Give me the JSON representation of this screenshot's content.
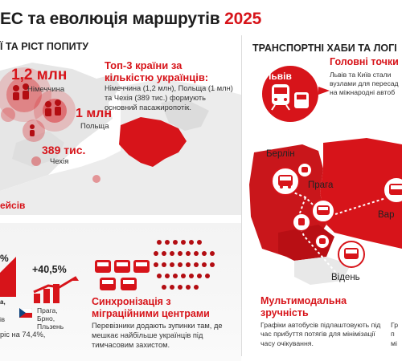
{
  "header": {
    "title_prefix": "ЕС та еволюція маршрутів",
    "title_year": "2025"
  },
  "left": {
    "subtitle": "Ї ТА РІСТ ПОПИТУ",
    "germany_value": "1,2 млн",
    "germany_label": "Німеччина",
    "poland_value": "1 млн",
    "poland_label": "Польща",
    "czech_value": "389 тис.",
    "czech_label": "Чехія",
    "top3_heading": "Топ-3 країни за кількістю українців:",
    "top3_body": "Німеччина (1,2 млн), Польща (1 млн) та Чехія (389 тис.) формують основний пасажиропотік.",
    "flights_heading": "ейсів",
    "growth_small": "%",
    "growth_value": "+40,5%",
    "cz_cities": "Прага, Брно, Пльзень",
    "bottom_left_text": "ріс на 74,4%,",
    "sync_heading": "Синхронізація з міграційними центрами",
    "sync_body": "Перевізники додають зупинки там, де мешкає найбільше українців під тимчасовим захистом."
  },
  "right": {
    "subtitle": "ТРАНСПОРТНІ ХАБИ ТА ЛОГІ",
    "lviv_label": "Львів",
    "main_points_heading": "Головні точки",
    "main_points_body": "Львів та Київ стали вузлами для пересад на міжнародні автоб",
    "berlin_label": "Берлін",
    "prague_label": "Прага",
    "warsaw_label": "Вар",
    "vienna_label": "Відень",
    "multimodal_heading": "Мультимодальна зручність",
    "multimodal_body": "Графіки автобусів підлаштовують під час прибуття потягів для мінімізації часу очікування.",
    "cut_text": "Гр п мі"
  },
  "colors": {
    "accent": "#d7141a",
    "map_gray": "#e4e4e4"
  }
}
